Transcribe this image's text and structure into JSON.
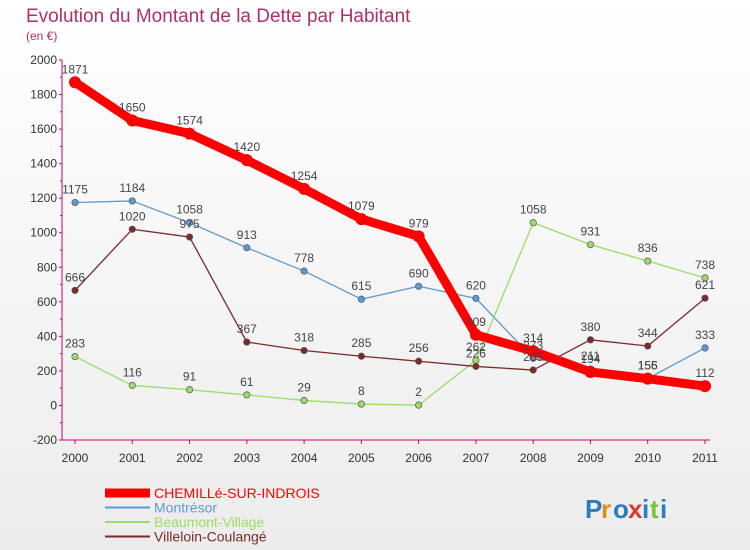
{
  "chart_data": {
    "type": "line",
    "title": "Evolution du Montant de la Dette par Habitant",
    "subtitle": "(en €)",
    "xlabel": "",
    "ylabel": "",
    "x": [
      "2000",
      "2001",
      "2002",
      "2003",
      "2004",
      "2005",
      "2006",
      "2007",
      "2008",
      "2009",
      "2010",
      "2011"
    ],
    "ylim": [
      -200,
      2000
    ],
    "yticks": [
      "-200",
      "0",
      "200",
      "400",
      "600",
      "800",
      "1000",
      "1200",
      "1400",
      "1600",
      "1800",
      "2000"
    ],
    "grid": false,
    "legend_position": "bottom-left",
    "series": [
      {
        "name": "CHEMILLé-SUR-INDROIS",
        "color": "#ff0000",
        "values": [
          1871,
          1650,
          1574,
          1420,
          1254,
          1079,
          979,
          409,
          314,
          194,
          155,
          112
        ],
        "labels": [
          "1871",
          "1650",
          "1574",
          "1420",
          "1254",
          "1079",
          "979",
          "409",
          "314",
          "194",
          "155",
          "112"
        ]
      },
      {
        "name": "Montrésor",
        "color": "#5b9bd5",
        "values": [
          1175,
          1184,
          1058,
          913,
          778,
          615,
          690,
          620,
          273,
          211,
          156,
          333
        ],
        "labels": [
          "1175",
          "1184",
          "1058",
          "913",
          "778",
          "615",
          "690",
          "620",
          "273",
          "211",
          "156",
          "333"
        ]
      },
      {
        "name": "Beaumont-Village",
        "color": "#99dd66",
        "values": [
          283,
          116,
          91,
          61,
          29,
          8,
          2,
          262,
          1058,
          931,
          836,
          738
        ],
        "labels": [
          "283",
          "116",
          "91",
          "61",
          "29",
          "8",
          "2",
          "262",
          "1058",
          "931",
          "836",
          "738"
        ]
      },
      {
        "name": "Villeloin-Coulangé",
        "color": "#7a2a2a",
        "values": [
          666,
          1020,
          975,
          367,
          318,
          285,
          256,
          226,
          205,
          380,
          344,
          621
        ],
        "labels": [
          "666",
          "1020",
          "975",
          "367",
          "318",
          "285",
          "256",
          "226",
          "205",
          "380",
          "344",
          "621"
        ]
      }
    ]
  },
  "logo": {
    "text": "Proxiti"
  }
}
